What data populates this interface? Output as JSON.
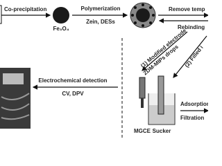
{
  "steps": {
    "coprecipitation": "Co-precipitation",
    "fe3o4": "Fe₃O₄",
    "polymerization": "Polymerization",
    "reagents": "Zein, DESs",
    "remove_template": "Remove temp",
    "rebinding": "Rebinding",
    "modified_electrode": "(1) Modified electrode",
    "drops": "ZDM-MIPs drops",
    "filled": "(2) Filled i",
    "detection": "Electrochemical detection",
    "methods": "CV, DPV",
    "mgce": "MGCE",
    "sucker": "Sucker",
    "adsorption": "Adsorption",
    "filtration": "Filtration"
  }
}
